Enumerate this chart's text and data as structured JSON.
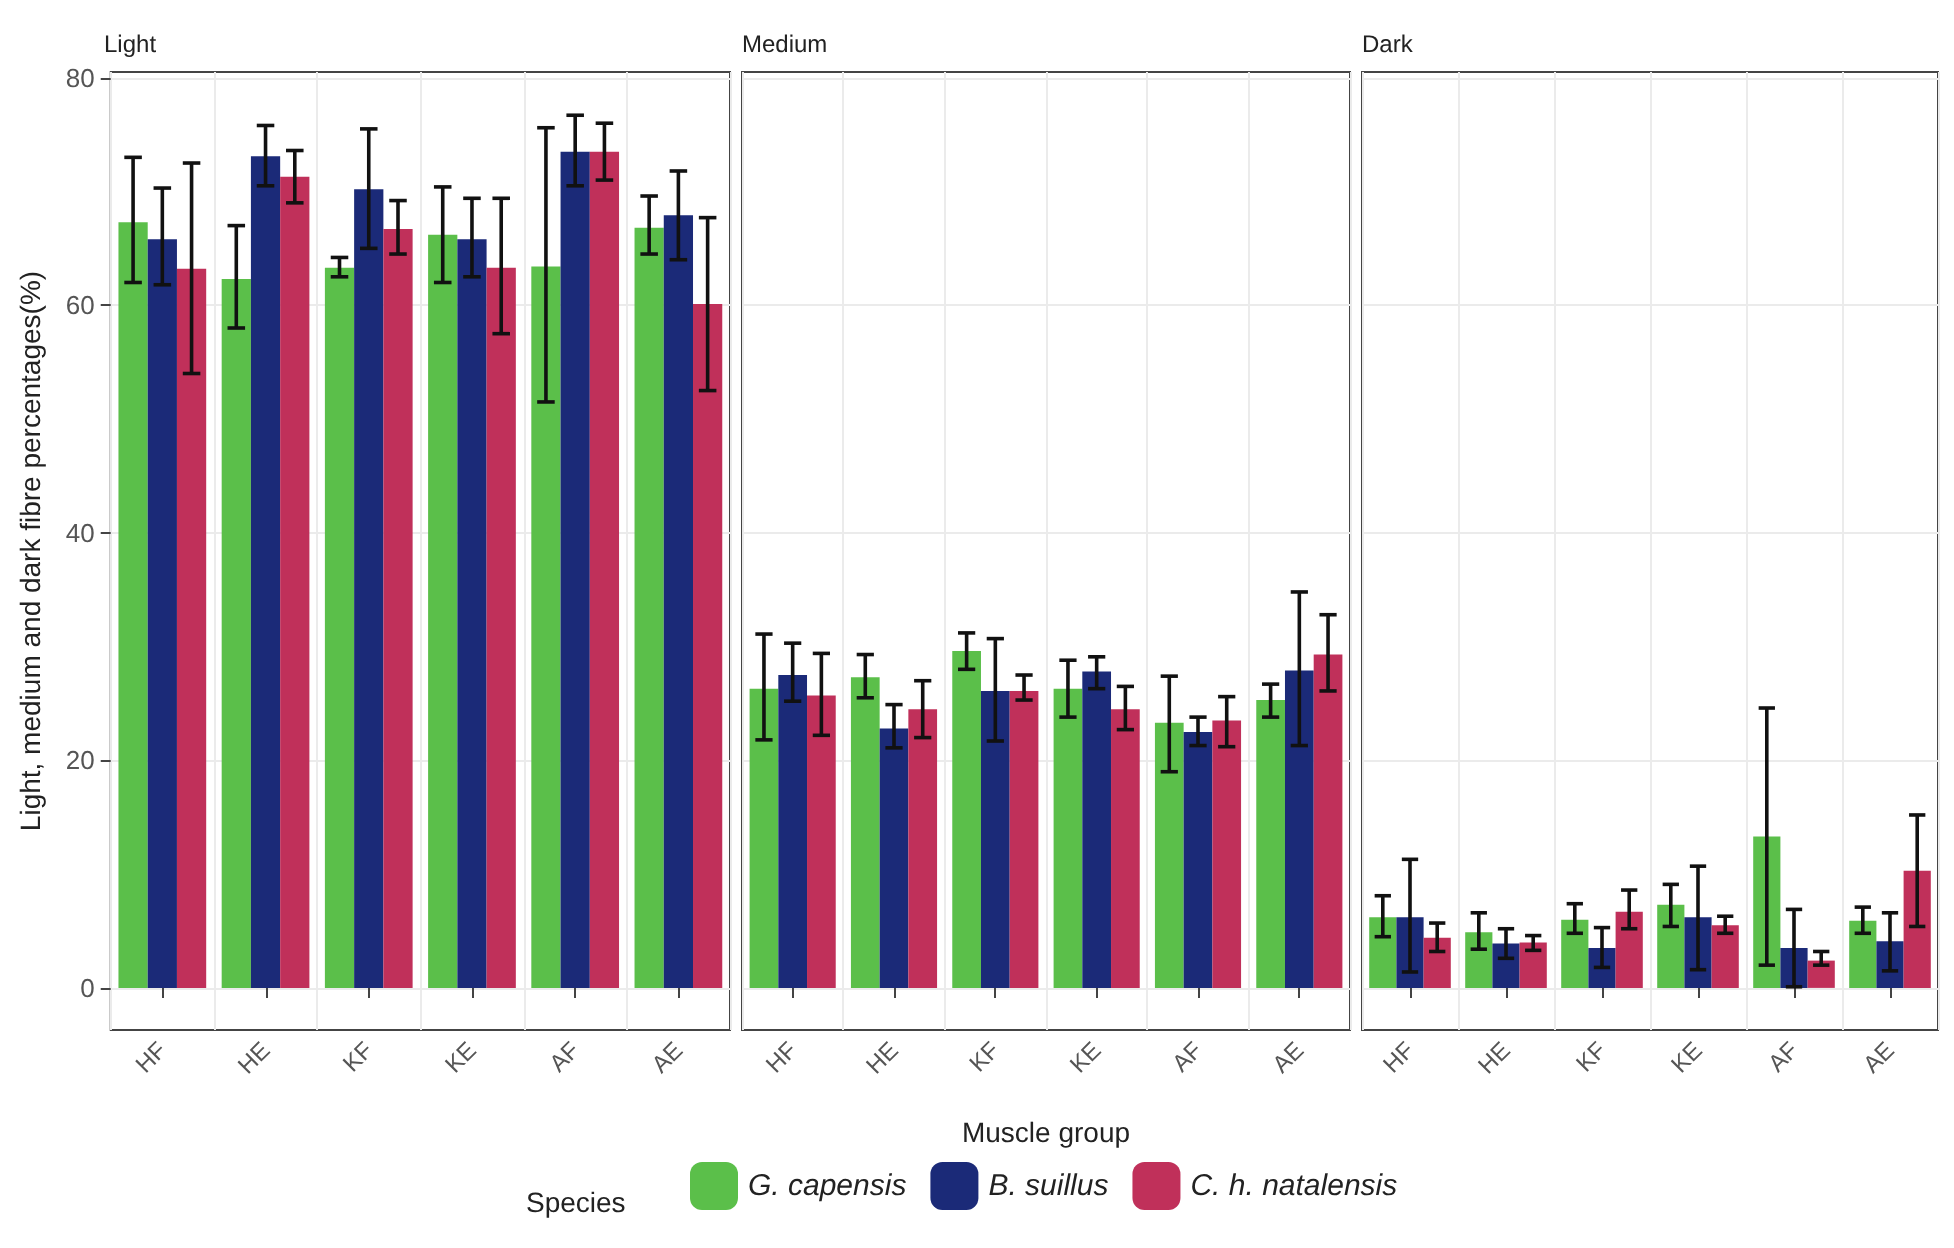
{
  "chart_data": [
    {
      "type": "bar",
      "title": "Light",
      "ylabel": "Light, medium and dark fibre percentages(%)",
      "categories": [
        "HF",
        "HE",
        "KF",
        "KE",
        "AF",
        "AE"
      ],
      "ylim": [
        -3.7,
        80.5
      ],
      "yticks": [
        0,
        20,
        40,
        60,
        80
      ],
      "grid": true,
      "series": [
        {
          "color": "#5bbf4a",
          "values": [
            67.3,
            62.3,
            63.3,
            66.2,
            63.4,
            66.8
          ],
          "errors": [
            [
              62,
              73
            ],
            [
              58,
              67
            ],
            [
              62.5,
              64.2
            ],
            [
              62,
              70.4
            ],
            [
              51.5,
              75.6
            ],
            [
              64.5,
              69.6
            ]
          ]
        },
        {
          "color": "#1b2a78",
          "values": [
            65.8,
            73.1,
            70.2,
            65.8,
            73.5,
            67.9
          ],
          "errors": [
            [
              61.8,
              70.3
            ],
            [
              70.5,
              75.8
            ],
            [
              65,
              75.5
            ],
            [
              62.5,
              69.4
            ],
            [
              70.5,
              76.7
            ],
            [
              64,
              71.8
            ]
          ]
        },
        {
          "color": "#c0305a",
          "values": [
            63.2,
            71.3,
            66.7,
            63.3,
            73.5,
            60.1
          ],
          "errors": [
            [
              54,
              72.5
            ],
            [
              69,
              73.6
            ],
            [
              64.5,
              69.2
            ],
            [
              57.5,
              69.4
            ],
            [
              71,
              76
            ],
            [
              52.5,
              67.7
            ]
          ]
        }
      ]
    },
    {
      "type": "bar",
      "title": "Medium",
      "xlabel": "Muscle group",
      "legend_title": "Species",
      "legend": "bottom",
      "categories": [
        "HF",
        "HE",
        "KF",
        "KE",
        "AF",
        "AE"
      ],
      "ylim": [
        -3.7,
        80.5
      ],
      "yticks": [
        0,
        20,
        40,
        60,
        80
      ],
      "grid": true,
      "tick_labels": "x",
      "series": [
        {
          "name": "G. capensis",
          "color": "#5bbf4a",
          "values": [
            26.3,
            27.3,
            29.6,
            26.3,
            23.3,
            25.3
          ],
          "errors": [
            [
              21.8,
              31.1
            ],
            [
              25.5,
              29.3
            ],
            [
              28,
              31.2
            ],
            [
              23.8,
              28.8
            ],
            [
              19,
              27.4
            ],
            [
              23.8,
              26.7
            ]
          ]
        },
        {
          "name": "B. suillus",
          "color": "#1b2a78",
          "values": [
            27.5,
            22.8,
            26.1,
            27.8,
            22.5,
            27.9
          ],
          "errors": [
            [
              25.2,
              30.3
            ],
            [
              21.1,
              24.9
            ],
            [
              21.7,
              30.7
            ],
            [
              26.3,
              29.1
            ],
            [
              21.3,
              23.8
            ],
            [
              21.3,
              34.8
            ]
          ]
        },
        {
          "name": "C. h. natalensis",
          "color": "#c0305a",
          "values": [
            25.7,
            24.5,
            26.1,
            24.5,
            23.5,
            29.3
          ],
          "errors": [
            [
              22.2,
              29.4
            ],
            [
              22,
              27
            ],
            [
              25.3,
              27.5
            ],
            [
              22.7,
              26.5
            ],
            [
              21.2,
              25.6
            ],
            [
              26.1,
              32.8
            ]
          ]
        }
      ]
    },
    {
      "type": "bar",
      "title": "Dark",
      "categories": [
        "HF",
        "HE",
        "KF",
        "KE",
        "AF",
        "AE"
      ],
      "ylim": [
        -3.7,
        80.5
      ],
      "yticks": [
        0,
        20,
        40,
        60,
        80
      ],
      "grid": true,
      "tick_labels": "x",
      "series": [
        {
          "color": "#5bbf4a",
          "values": [
            6.2,
            4.9,
            6,
            7.3,
            13.3,
            5.9
          ],
          "errors": [
            [
              4.5,
              8.1
            ],
            [
              3.4,
              6.6
            ],
            [
              4.8,
              7.4
            ],
            [
              5.4,
              9.1
            ],
            [
              2,
              24.6
            ],
            [
              4.8,
              7.1
            ]
          ]
        },
        {
          "color": "#1b2a78",
          "values": [
            6.2,
            3.9,
            3.5,
            6.2,
            3.5,
            4.1
          ],
          "errors": [
            [
              1.4,
              11.3
            ],
            [
              2.6,
              5.2
            ],
            [
              1.8,
              5.3
            ],
            [
              1.6,
              10.7
            ],
            [
              0.1,
              6.9
            ],
            [
              1.5,
              6.6
            ]
          ]
        },
        {
          "color": "#c0305a",
          "values": [
            4.4,
            4,
            6.7,
            5.5,
            2.4,
            10.3
          ],
          "errors": [
            [
              3.2,
              5.7
            ],
            [
              3.3,
              4.6
            ],
            [
              5.2,
              8.6
            ],
            [
              4.8,
              6.3
            ],
            [
              2,
              3.2
            ],
            [
              5.4,
              15.2
            ]
          ]
        }
      ]
    }
  ]
}
